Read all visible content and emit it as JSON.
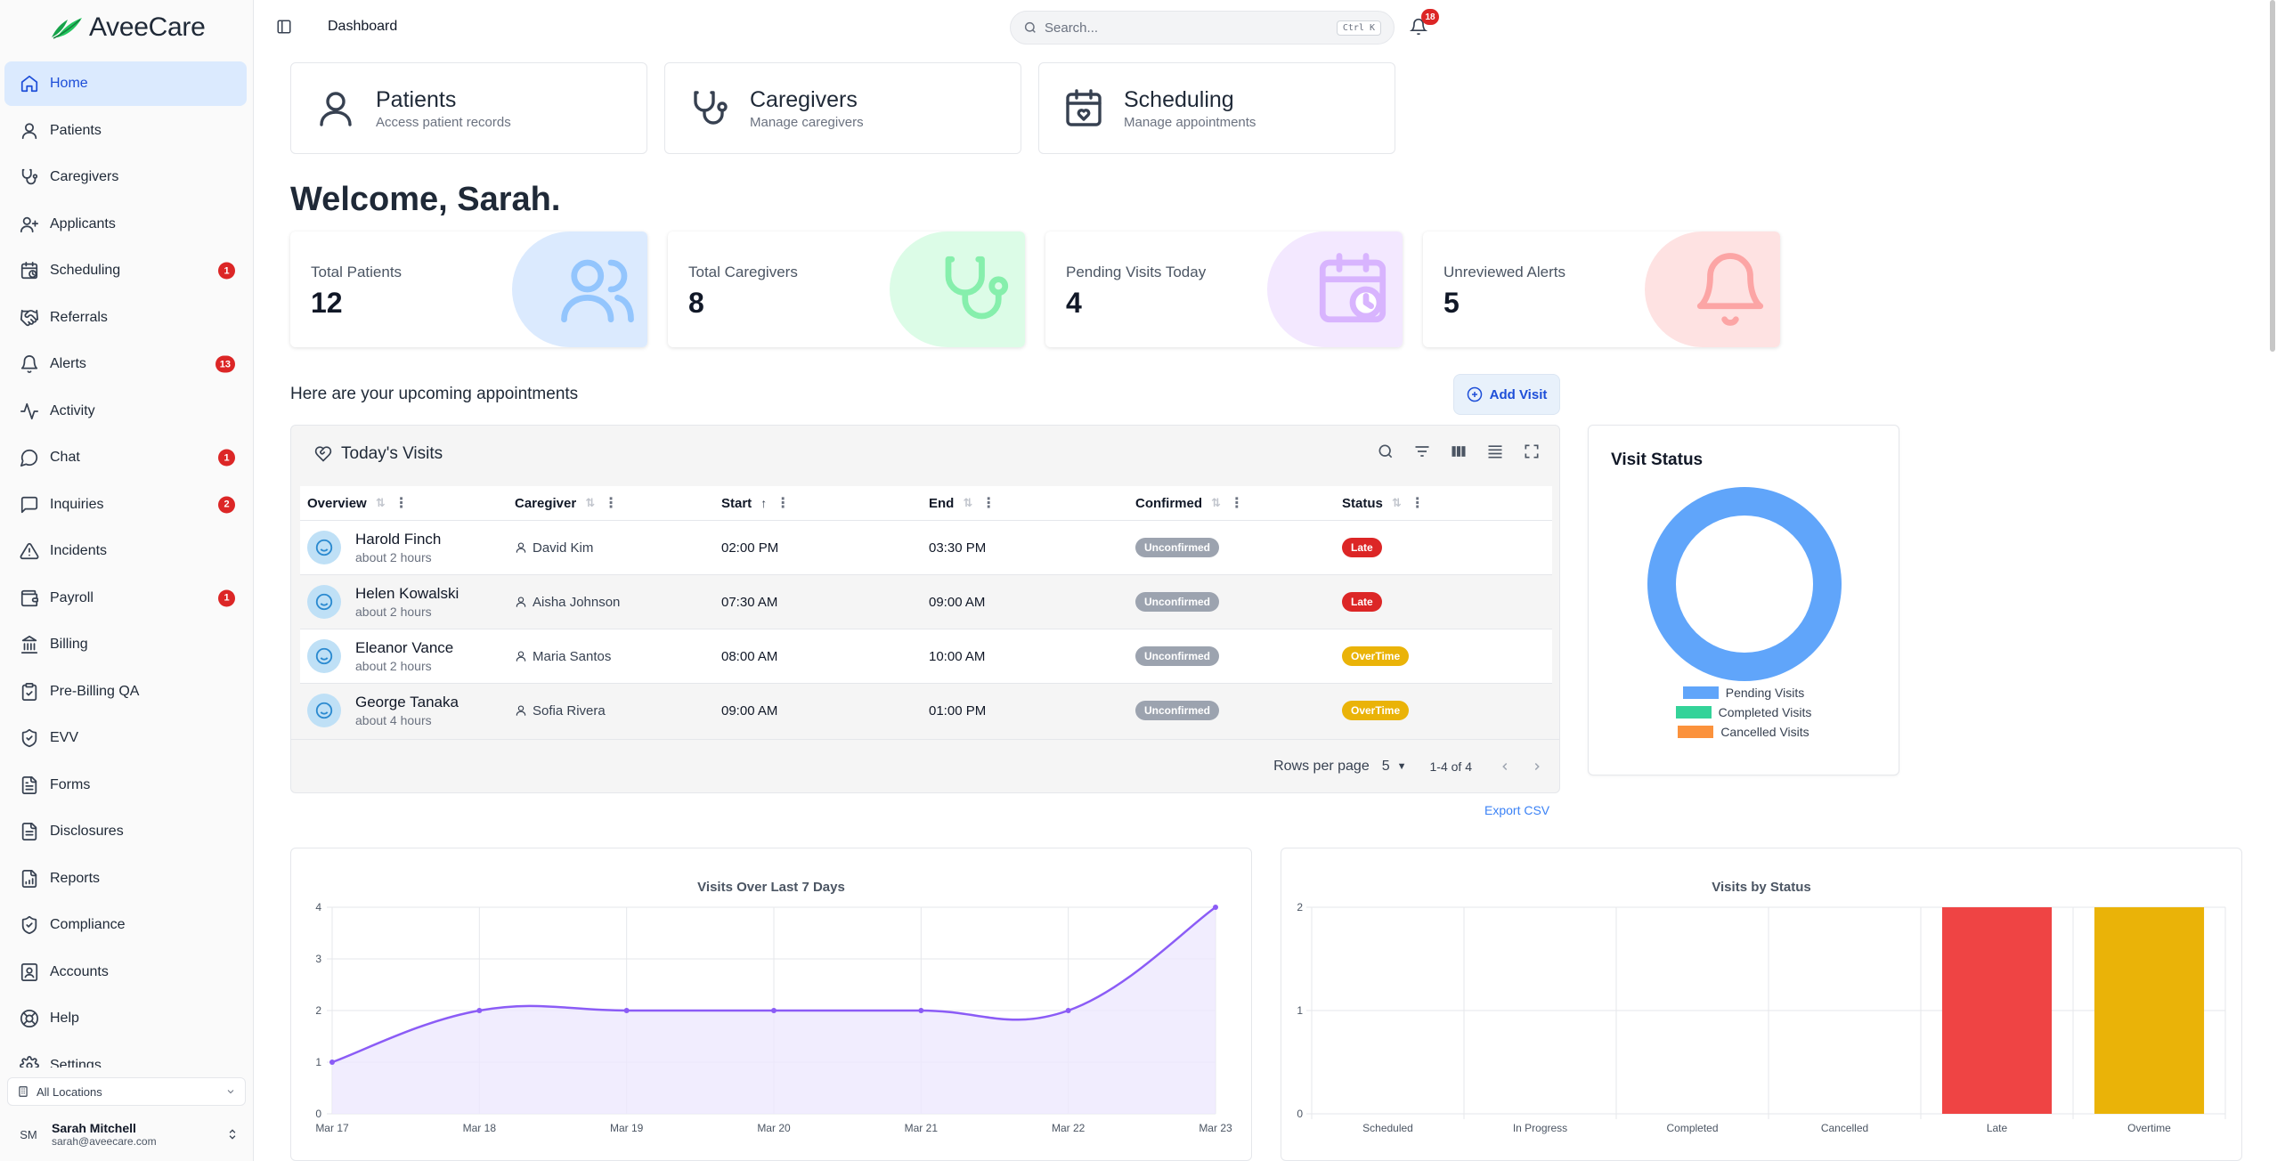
{
  "app": {
    "brand": "AveeCare",
    "page_title": "Dashboard"
  },
  "sidebar": {
    "items": [
      {
        "label": "Home",
        "icon": "home-icon",
        "active": true
      },
      {
        "label": "Patients",
        "icon": "person-icon"
      },
      {
        "label": "Caregivers",
        "icon": "stethoscope-icon"
      },
      {
        "label": "Applicants",
        "icon": "user-plus-icon"
      },
      {
        "label": "Scheduling",
        "icon": "calendar-clock-icon",
        "badge": "1"
      },
      {
        "label": "Referrals",
        "icon": "handshake-icon"
      },
      {
        "label": "Alerts",
        "icon": "bell-icon",
        "badge": "13"
      },
      {
        "label": "Activity",
        "icon": "activity-icon"
      },
      {
        "label": "Chat",
        "icon": "chat-bubble-icon",
        "badge": "1"
      },
      {
        "label": "Inquiries",
        "icon": "message-square-icon",
        "badge": "2"
      },
      {
        "label": "Incidents",
        "icon": "warning-triangle-icon"
      },
      {
        "label": "Payroll",
        "icon": "wallet-icon",
        "badge": "1"
      },
      {
        "label": "Billing",
        "icon": "bank-icon"
      },
      {
        "label": "Pre-Billing QA",
        "icon": "clipboard-check-icon"
      },
      {
        "label": "EVV",
        "icon": "shield-check-icon"
      },
      {
        "label": "Forms",
        "icon": "file-text-icon"
      },
      {
        "label": "Disclosures",
        "icon": "file-list-icon"
      },
      {
        "label": "Reports",
        "icon": "file-chart-icon"
      },
      {
        "label": "Compliance",
        "icon": "shield-check-icon"
      },
      {
        "label": "Accounts",
        "icon": "contact-book-icon"
      },
      {
        "label": "Help",
        "icon": "lifebuoy-icon"
      },
      {
        "label": "Settings",
        "icon": "gear-icon"
      }
    ],
    "location": "All Locations",
    "user": {
      "initials": "SM",
      "name": "Sarah Mitchell",
      "email": "sarah@aveecare.com"
    }
  },
  "header": {
    "search_placeholder": "Search...",
    "search_shortcut": "Ctrl K",
    "notifications_count": "18"
  },
  "quick_links": [
    {
      "title": "Patients",
      "subtitle": "Access patient records",
      "icon": "person-icon"
    },
    {
      "title": "Caregivers",
      "subtitle": "Manage caregivers",
      "icon": "stethoscope-icon"
    },
    {
      "title": "Scheduling",
      "subtitle": "Manage appointments",
      "icon": "calendar-heart-icon"
    }
  ],
  "welcome": "Welcome, Sarah.",
  "stats": [
    {
      "label": "Total Patients",
      "value": "12",
      "icon": "users-icon",
      "bg": "#dbeafe",
      "fg": "#93c5fd"
    },
    {
      "label": "Total Caregivers",
      "value": "8",
      "icon": "stethoscope-icon",
      "bg": "#dcfce7",
      "fg": "#86efac"
    },
    {
      "label": "Pending Visits Today",
      "value": "4",
      "icon": "calendar-clock-icon",
      "bg": "#f3e8ff",
      "fg": "#d8b4fe"
    },
    {
      "label": "Unreviewed Alerts",
      "value": "5",
      "icon": "bell-icon",
      "bg": "#fee2e2",
      "fg": "#fca5a5"
    }
  ],
  "upcoming_text": "Here are your upcoming appointments",
  "add_visit_label": "Add Visit",
  "visits_table": {
    "title": "Today's Visits",
    "columns": [
      "Overview",
      "Caregiver",
      "Start",
      "End",
      "Confirmed",
      "Status"
    ],
    "rows": [
      {
        "patient": "Harold Finch",
        "ago": "about 2 hours",
        "caregiver": "David Kim",
        "start": "02:00 PM",
        "end": "03:30 PM",
        "confirmed": "Unconfirmed",
        "status": "Late"
      },
      {
        "patient": "Helen Kowalski",
        "ago": "about 2 hours",
        "caregiver": "Aisha Johnson",
        "start": "07:30 AM",
        "end": "09:00 AM",
        "confirmed": "Unconfirmed",
        "status": "Late"
      },
      {
        "patient": "Eleanor Vance",
        "ago": "about 2 hours",
        "caregiver": "Maria Santos",
        "start": "08:00 AM",
        "end": "10:00 AM",
        "confirmed": "Unconfirmed",
        "status": "OverTime"
      },
      {
        "patient": "George Tanaka",
        "ago": "about 4 hours",
        "caregiver": "Sofia Rivera",
        "start": "09:00 AM",
        "end": "01:00 PM",
        "confirmed": "Unconfirmed",
        "status": "OverTime"
      }
    ],
    "rows_per_page_label": "Rows per page",
    "rows_per_page": "5",
    "range": "1-4 of 4",
    "export_label": "Export CSV"
  },
  "chart_data": [
    {
      "type": "pie",
      "title": "Visit Status",
      "categories": [
        "Pending Visits",
        "Completed Visits",
        "Cancelled Visits"
      ],
      "values": [
        4,
        0,
        0
      ],
      "colors": [
        "#60a5fa",
        "#34d399",
        "#fb923c"
      ],
      "legend": "bottom"
    },
    {
      "type": "area",
      "title": "Visits Over Last 7 Days",
      "categories": [
        "Mar 17",
        "Mar 18",
        "Mar 19",
        "Mar 20",
        "Mar 21",
        "Mar 22",
        "Mar 23"
      ],
      "values": [
        1,
        2,
        2,
        2,
        2,
        2,
        4
      ],
      "ylim": [
        0,
        4
      ],
      "yticks": [
        0,
        1,
        2,
        3,
        4
      ],
      "color": "#8b5cf6",
      "fill": "#ede9fe",
      "grid": true
    },
    {
      "type": "bar",
      "title": "Visits by Status",
      "categories": [
        "Scheduled",
        "In Progress",
        "Completed",
        "Cancelled",
        "Late",
        "Overtime"
      ],
      "values": [
        0,
        0,
        0,
        0,
        2,
        2
      ],
      "colors": [
        "#60a5fa",
        "#60a5fa",
        "#34d399",
        "#fb923c",
        "#ef4444",
        "#eab308"
      ],
      "ylim": [
        0,
        2
      ],
      "yticks": [
        0,
        1,
        2
      ],
      "grid": true
    }
  ]
}
